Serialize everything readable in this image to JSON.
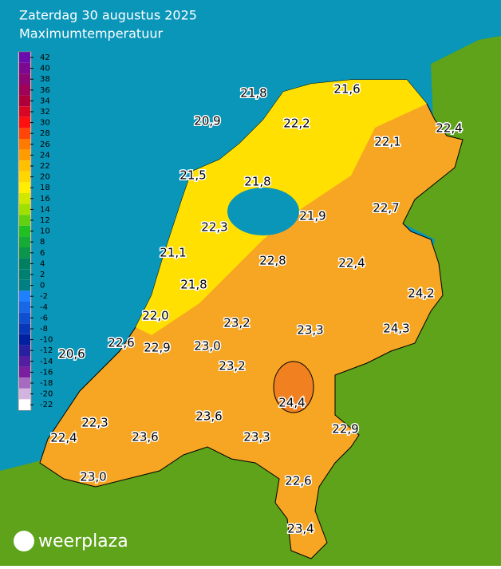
{
  "title": "Zaterdag 30 augustus 2025",
  "subtitle": "Maximumtemperatuur",
  "legend": {
    "ticks": [
      42,
      40,
      38,
      36,
      34,
      32,
      30,
      28,
      26,
      24,
      22,
      20,
      18,
      16,
      14,
      12,
      10,
      8,
      6,
      4,
      2,
      0,
      -2,
      -4,
      -6,
      -8,
      -10,
      -12,
      -14,
      -16,
      -18,
      -20,
      -22
    ]
  },
  "stations": [
    "21,8",
    "21,6",
    "20,9",
    "22,2",
    "22,4",
    "22,1",
    "21,5",
    "21,8",
    "22,7",
    "21,9",
    "22,3",
    "21,1",
    "22,8",
    "22,4",
    "21,8",
    "24,2",
    "22,0",
    "23,2",
    "23,3",
    "24,3",
    "22,6",
    "22,9",
    "23,0",
    "20,6",
    "23,2",
    "24,4",
    "22,3",
    "23,6",
    "22,4",
    "23,6",
    "23,3",
    "22,9",
    "23,0",
    "22,6",
    "23,4"
  ],
  "brand": "weerplaza"
}
